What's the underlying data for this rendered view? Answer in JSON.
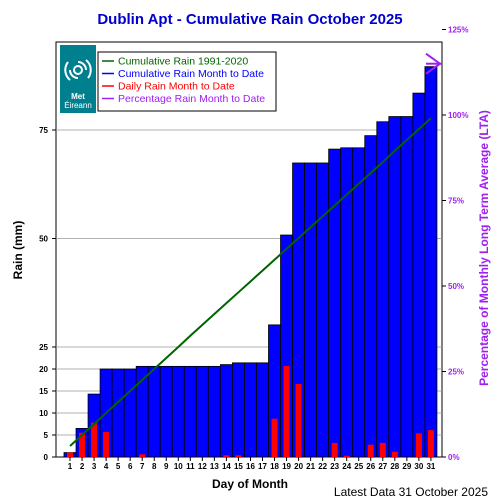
{
  "chart_data": {
    "type": "bar",
    "title": "Dublin Apt - Cumulative Rain October   2025",
    "xlabel": "Day of Month",
    "ylabel": "Rain (mm)",
    "y2label": "Percentage  of Monthly Long Term Average (LTA)",
    "footer": "Latest Data 31 October 2025",
    "days": [
      "1",
      "2",
      "3",
      "4",
      "5",
      "6",
      "7",
      "8",
      "9",
      "10",
      "11",
      "12",
      "13",
      "14",
      "15",
      "16",
      "17",
      "18",
      "19",
      "20",
      "21",
      "22",
      "23",
      "24",
      "25",
      "26",
      "27",
      "28",
      "29",
      "30",
      "31"
    ],
    "y_ticks": [
      0,
      5,
      10,
      15,
      20,
      25,
      50,
      75
    ],
    "y2_ticks": [
      "0%",
      "25%",
      "50%",
      "75%",
      "100%",
      "125%"
    ],
    "ylim_note": "broken scale: 0-25 mm expanded, 25-100 mm compressed",
    "series": [
      {
        "name": "Cumulative Rain Month to Date",
        "color": "#0000ff",
        "values": [
          1.0,
          6.5,
          14.3,
          20.0,
          20.0,
          20.0,
          20.6,
          20.6,
          20.6,
          20.6,
          20.6,
          20.6,
          20.6,
          21.0,
          21.4,
          21.4,
          21.4,
          30.1,
          50.8,
          67.4,
          67.4,
          67.4,
          70.6,
          70.9,
          70.9,
          73.7,
          76.9,
          78.1,
          78.1,
          83.5,
          89.6
        ]
      },
      {
        "name": "Daily Rain Month to Date",
        "color": "#ff0000",
        "values": [
          1.0,
          5.5,
          7.8,
          5.7,
          0,
          0,
          0.6,
          0,
          0,
          0,
          0,
          0,
          0,
          0.4,
          0.4,
          0,
          0,
          8.7,
          20.7,
          16.6,
          0,
          0,
          3.2,
          0.3,
          0,
          2.8,
          3.2,
          1.2,
          0,
          5.4,
          6.1
        ]
      },
      {
        "name": "Cumulative Rain 1991-2020",
        "color": "#006400",
        "values": [
          2.5,
          5.0,
          7.5,
          10.0,
          12.5,
          15.0,
          17.5,
          20.0,
          22.5,
          25.0,
          27.6,
          30.1,
          32.6,
          35.1,
          37.6,
          40.1,
          42.6,
          45.1,
          47.6,
          50.1,
          52.6,
          55.1,
          57.6,
          60.1,
          62.6,
          65.1,
          67.6,
          70.2,
          72.7,
          75.2,
          77.7
        ]
      },
      {
        "name": "Percentage Rain Month to Date",
        "color": "#a020f0",
        "values": [
          115
        ]
      }
    ]
  },
  "logo": {
    "line1": "Met",
    "line2": "Éireann",
    "bg": "#00808f"
  }
}
